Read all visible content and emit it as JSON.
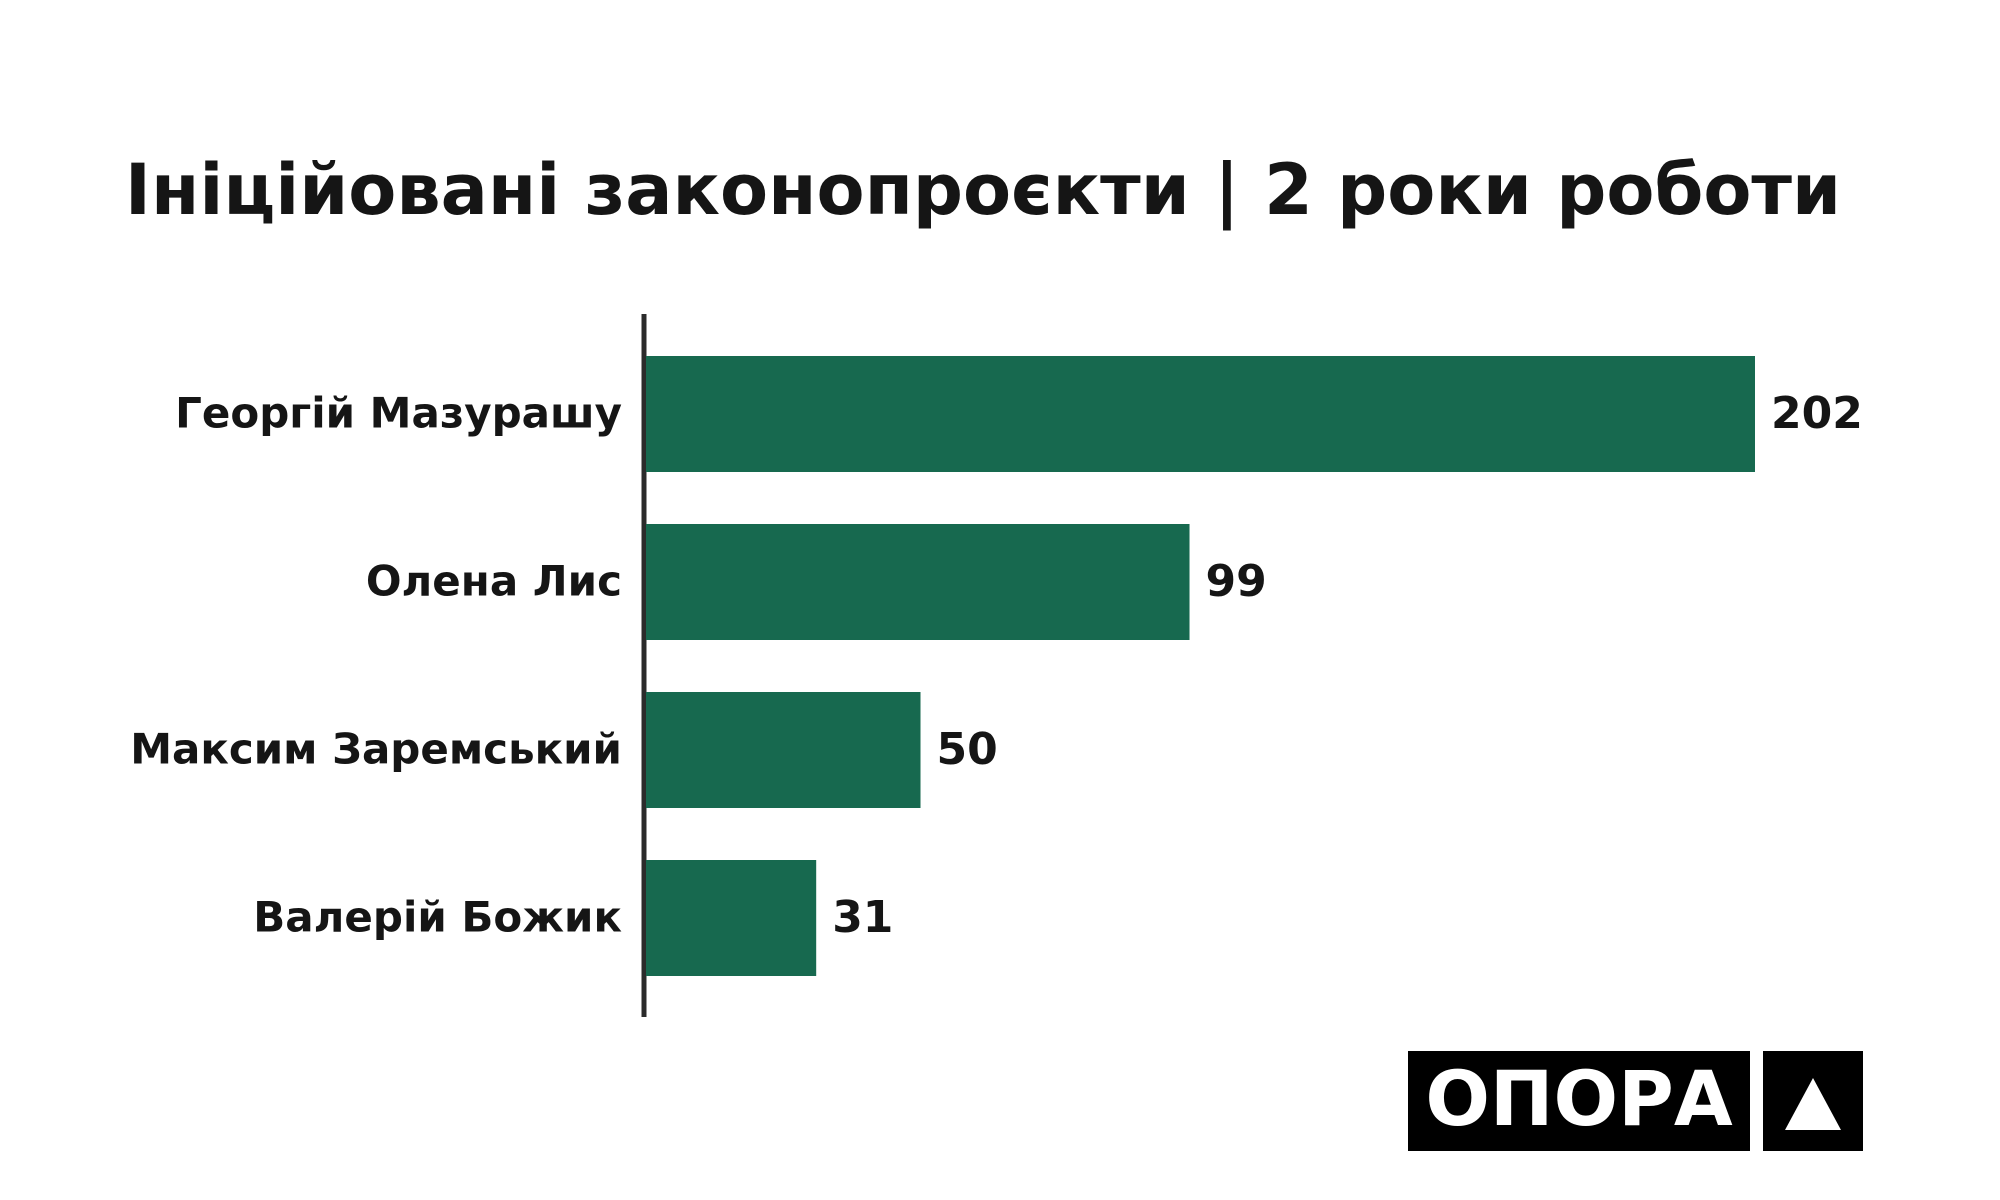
{
  "chart_data": {
    "type": "bar",
    "orientation": "horizontal",
    "title": "Ініційовані законопроєкти | 2 роки роботи",
    "categories": [
      "Георгій Мазурашу",
      "Олена Лис",
      "Максим Заремський",
      "Валерій Божик"
    ],
    "values": [
      202,
      99,
      50,
      31
    ],
    "color": "#17694f",
    "show_value_labels": true
  },
  "logo": "ОПОРА"
}
